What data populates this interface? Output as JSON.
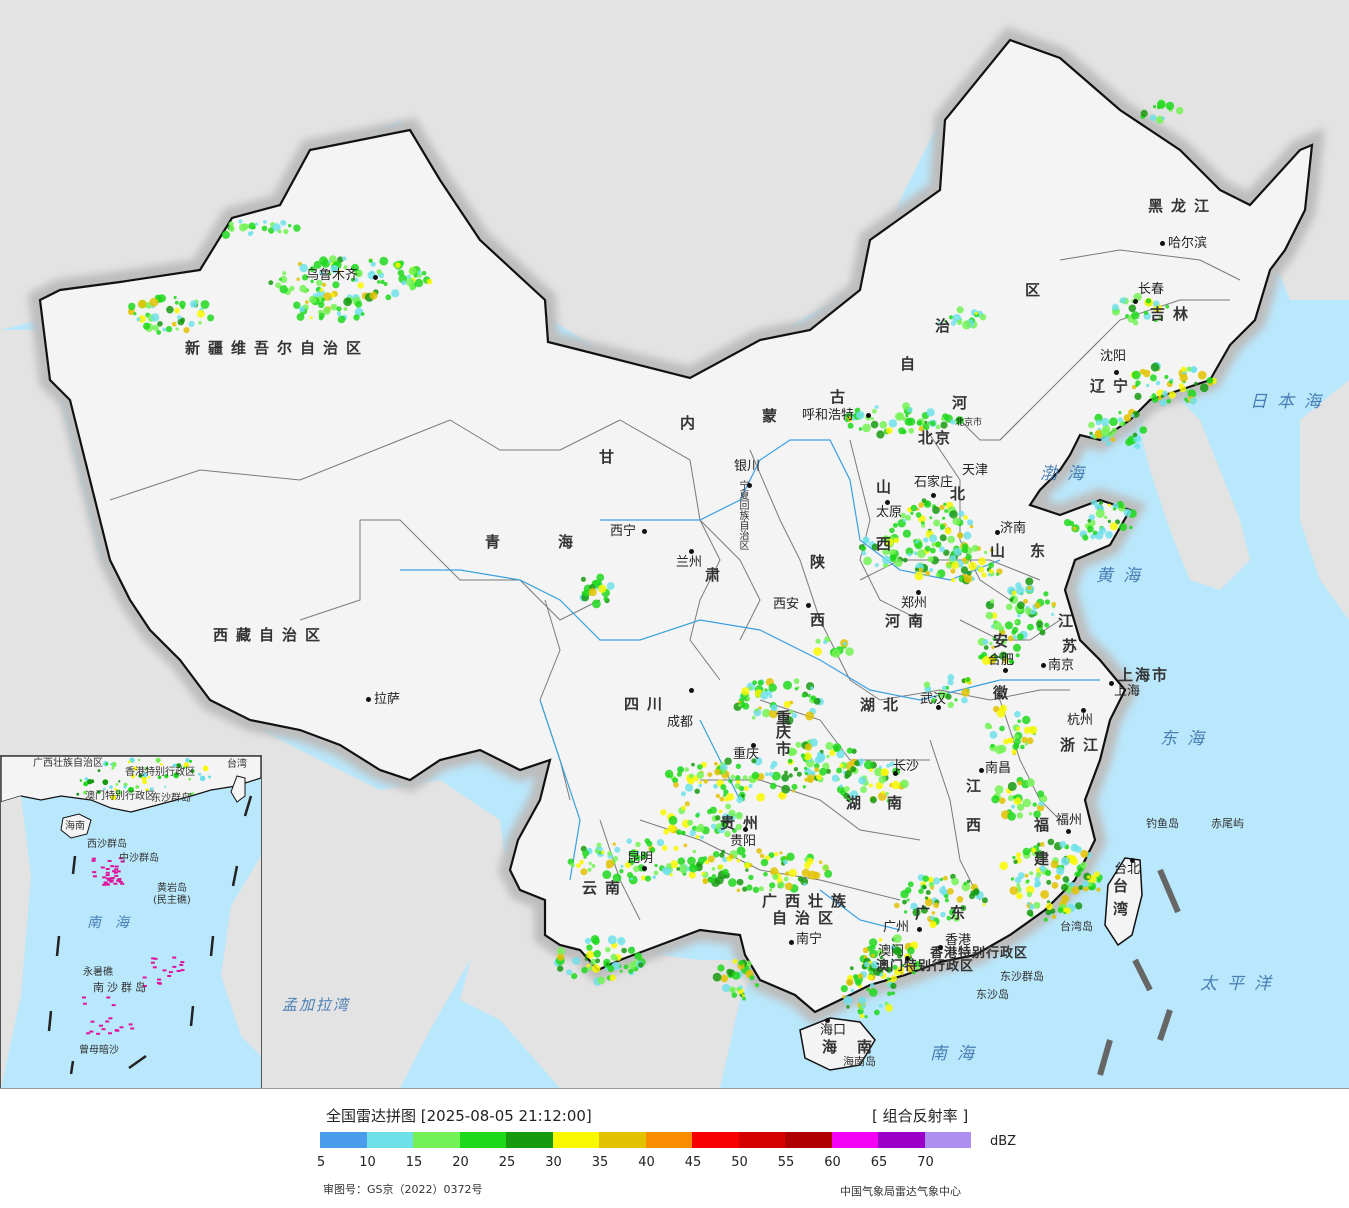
{
  "map": {
    "provinces": [
      {
        "key": "xinjiang",
        "text": "新疆维吾尔自治区"
      },
      {
        "key": "xizang",
        "text": "西藏自治区"
      },
      {
        "key": "qinghai_a",
        "text": "青"
      },
      {
        "key": "qinghai_b",
        "text": "海"
      },
      {
        "key": "gansu_a",
        "text": "甘"
      },
      {
        "key": "gansu_b",
        "text": "肃"
      },
      {
        "key": "neimenggu_a",
        "text": "内"
      },
      {
        "key": "neimenggu_b",
        "text": "蒙"
      },
      {
        "key": "neimenggu_c",
        "text": "古"
      },
      {
        "key": "neimenggu_d",
        "text": "自"
      },
      {
        "key": "neimenggu_e",
        "text": "治"
      },
      {
        "key": "neimenggu_f",
        "text": "区"
      },
      {
        "key": "heilongjiang",
        "text": "黑龙江"
      },
      {
        "key": "jilin",
        "text": "吉林"
      },
      {
        "key": "liaoning",
        "text": "辽宁"
      },
      {
        "key": "hebei_a",
        "text": "河"
      },
      {
        "key": "hebei_b",
        "text": "北"
      },
      {
        "key": "shanxi_a",
        "text": "山"
      },
      {
        "key": "shanxi_b",
        "text": "西"
      },
      {
        "key": "shandong_a",
        "text": "山"
      },
      {
        "key": "shandong_b",
        "text": "东"
      },
      {
        "key": "henan",
        "text": "河南"
      },
      {
        "key": "shaanxi_a",
        "text": "陕"
      },
      {
        "key": "shaanxi_b",
        "text": "西"
      },
      {
        "key": "jiangsu_a",
        "text": "江"
      },
      {
        "key": "jiangsu_b",
        "text": "苏"
      },
      {
        "key": "anhui_a",
        "text": "安"
      },
      {
        "key": "anhui_b",
        "text": "徽"
      },
      {
        "key": "sichuan",
        "text": "四川"
      },
      {
        "key": "chongqing_a",
        "text": "重"
      },
      {
        "key": "chongqing_b",
        "text": "庆"
      },
      {
        "key": "chongqing_c",
        "text": "市"
      },
      {
        "key": "hubei",
        "text": "湖北"
      },
      {
        "key": "hunan_a",
        "text": "湖"
      },
      {
        "key": "hunan_b",
        "text": "南"
      },
      {
        "key": "jiangxi_a",
        "text": "江"
      },
      {
        "key": "jiangxi_b",
        "text": "西"
      },
      {
        "key": "zhejiang",
        "text": "浙江"
      },
      {
        "key": "fujian_a",
        "text": "福"
      },
      {
        "key": "fujian_b",
        "text": "建"
      },
      {
        "key": "guizhou",
        "text": "贵州"
      },
      {
        "key": "yunnan",
        "text": "云南"
      },
      {
        "key": "guangxi_a",
        "text": "广西壮族"
      },
      {
        "key": "guangxi_b",
        "text": "自治区"
      },
      {
        "key": "guangdong_a",
        "text": "广"
      },
      {
        "key": "guangdong_b",
        "text": "东"
      },
      {
        "key": "hainan_a",
        "text": "海"
      },
      {
        "key": "hainan_b",
        "text": "南"
      },
      {
        "key": "taiwan_a",
        "text": "台"
      },
      {
        "key": "taiwan_b",
        "text": "湾"
      },
      {
        "key": "shanghai",
        "text": "上海市"
      },
      {
        "key": "tianjin",
        "text": "天津"
      },
      {
        "key": "beijing",
        "text": "北京"
      },
      {
        "key": "hk",
        "text": "香港特别行政区"
      },
      {
        "key": "macao",
        "text": "澳门特别行政区"
      },
      {
        "key": "ningxia",
        "text": "宁夏回族自治区"
      }
    ],
    "cities": [
      {
        "key": "urumqi",
        "text": "乌鲁木齐"
      },
      {
        "key": "lhasa",
        "text": "拉萨"
      },
      {
        "key": "xining",
        "text": "西宁"
      },
      {
        "key": "lanzhou",
        "text": "兰州"
      },
      {
        "key": "yinchuan",
        "text": "银川"
      },
      {
        "key": "hohhot",
        "text": "呼和浩特"
      },
      {
        "key": "harbin",
        "text": "哈尔滨"
      },
      {
        "key": "changchun",
        "text": "长春"
      },
      {
        "key": "shenyang",
        "text": "沈阳"
      },
      {
        "key": "beijing_city",
        "text": "北京市"
      },
      {
        "key": "shijiazhuang",
        "text": "石家庄"
      },
      {
        "key": "taiyuan",
        "text": "太原"
      },
      {
        "key": "jinan",
        "text": "济南"
      },
      {
        "key": "zhengzhou",
        "text": "郑州"
      },
      {
        "key": "xian",
        "text": "西安"
      },
      {
        "key": "nanjing",
        "text": "南京"
      },
      {
        "key": "hefei",
        "text": "合肥"
      },
      {
        "key": "shanghai_city",
        "text": "上海"
      },
      {
        "key": "hangzhou",
        "text": "杭州"
      },
      {
        "key": "wuhan",
        "text": "武汉"
      },
      {
        "key": "chengdu",
        "text": "成都"
      },
      {
        "key": "chongqing_city",
        "text": "重庆"
      },
      {
        "key": "changsha",
        "text": "长沙"
      },
      {
        "key": "nanchang",
        "text": "南昌"
      },
      {
        "key": "fuzhou",
        "text": "福州"
      },
      {
        "key": "guiyang",
        "text": "贵阳"
      },
      {
        "key": "kunming",
        "text": "昆明"
      },
      {
        "key": "nanning",
        "text": "南宁"
      },
      {
        "key": "guangzhou",
        "text": "广州"
      },
      {
        "key": "xianggang",
        "text": "香港"
      },
      {
        "key": "aomen",
        "text": "澳门"
      },
      {
        "key": "haikou",
        "text": "海口"
      },
      {
        "key": "taipei",
        "text": "台北"
      }
    ],
    "seas": [
      {
        "key": "bohai",
        "text": "渤海"
      },
      {
        "key": "huanghai",
        "text": "黄海"
      },
      {
        "key": "donghai",
        "text": "东海"
      },
      {
        "key": "nanhai",
        "text": "南海"
      },
      {
        "key": "ribenhai",
        "text": "日本海"
      },
      {
        "key": "taipingyang",
        "text": "太平洋"
      },
      {
        "key": "mengjialawan",
        "text": "孟加拉湾"
      }
    ],
    "islands": [
      {
        "key": "diaoyudao",
        "text": "钓鱼岛"
      },
      {
        "key": "chiweiyu",
        "text": "赤尾屿"
      },
      {
        "key": "dongsha_qundao",
        "text": "东沙群岛"
      },
      {
        "key": "dongshadao",
        "text": "东沙岛"
      },
      {
        "key": "hainandao",
        "text": "海南岛"
      },
      {
        "key": "taiwandao",
        "text": "台湾岛"
      }
    ],
    "inset": {
      "labels": [
        {
          "key": "gx",
          "text": "广西壮族自治区"
        },
        {
          "key": "hk",
          "text": "香港特别行政区"
        },
        {
          "key": "mo",
          "text": "澳门特别行政区"
        },
        {
          "key": "dongsha",
          "text": "东沙群岛"
        },
        {
          "key": "taiwan",
          "text": "台湾"
        },
        {
          "key": "hainan",
          "text": "海南"
        },
        {
          "key": "xisha",
          "text": "西沙群岛"
        },
        {
          "key": "zhongsha",
          "text": "中沙群岛"
        },
        {
          "key": "huangyan",
          "text": "黄岩岛"
        },
        {
          "key": "minzhujiao",
          "text": "(民主礁)"
        },
        {
          "key": "nanhai",
          "text": "南海"
        },
        {
          "key": "yongshujiao",
          "text": "永暑礁"
        },
        {
          "key": "nansha",
          "text": "南沙群岛"
        },
        {
          "key": "zengmuansha",
          "text": "曾母暗沙"
        }
      ]
    },
    "colors": {
      "sea": "#b9e7fb",
      "foreign_land": "#e3e3e3",
      "china_land": "#f4f4f4",
      "border": "#111111",
      "province_border": "#7a7a7a",
      "river": "#3aa0e0"
    }
  },
  "legend": {
    "title": "全国雷达拼图 [2025-08-05 21:12:00]",
    "product": "[ 组合反射率 ]",
    "unit": "dBZ",
    "ticks": [
      "5",
      "10",
      "15",
      "20",
      "25",
      "30",
      "35",
      "40",
      "45",
      "50",
      "55",
      "60",
      "65",
      "70"
    ],
    "colors": [
      "#4a9bec",
      "#6ee0ea",
      "#74f255",
      "#1ed81c",
      "#169a10",
      "#f8f800",
      "#e2c200",
      "#f98d00",
      "#f80000",
      "#d50000",
      "#b00000",
      "#f400f4",
      "#9a00c7",
      "#ad8ef1"
    ],
    "approval": "审图号：GS京（2022）0372号",
    "credit": "中国气象局雷达气象中心"
  }
}
